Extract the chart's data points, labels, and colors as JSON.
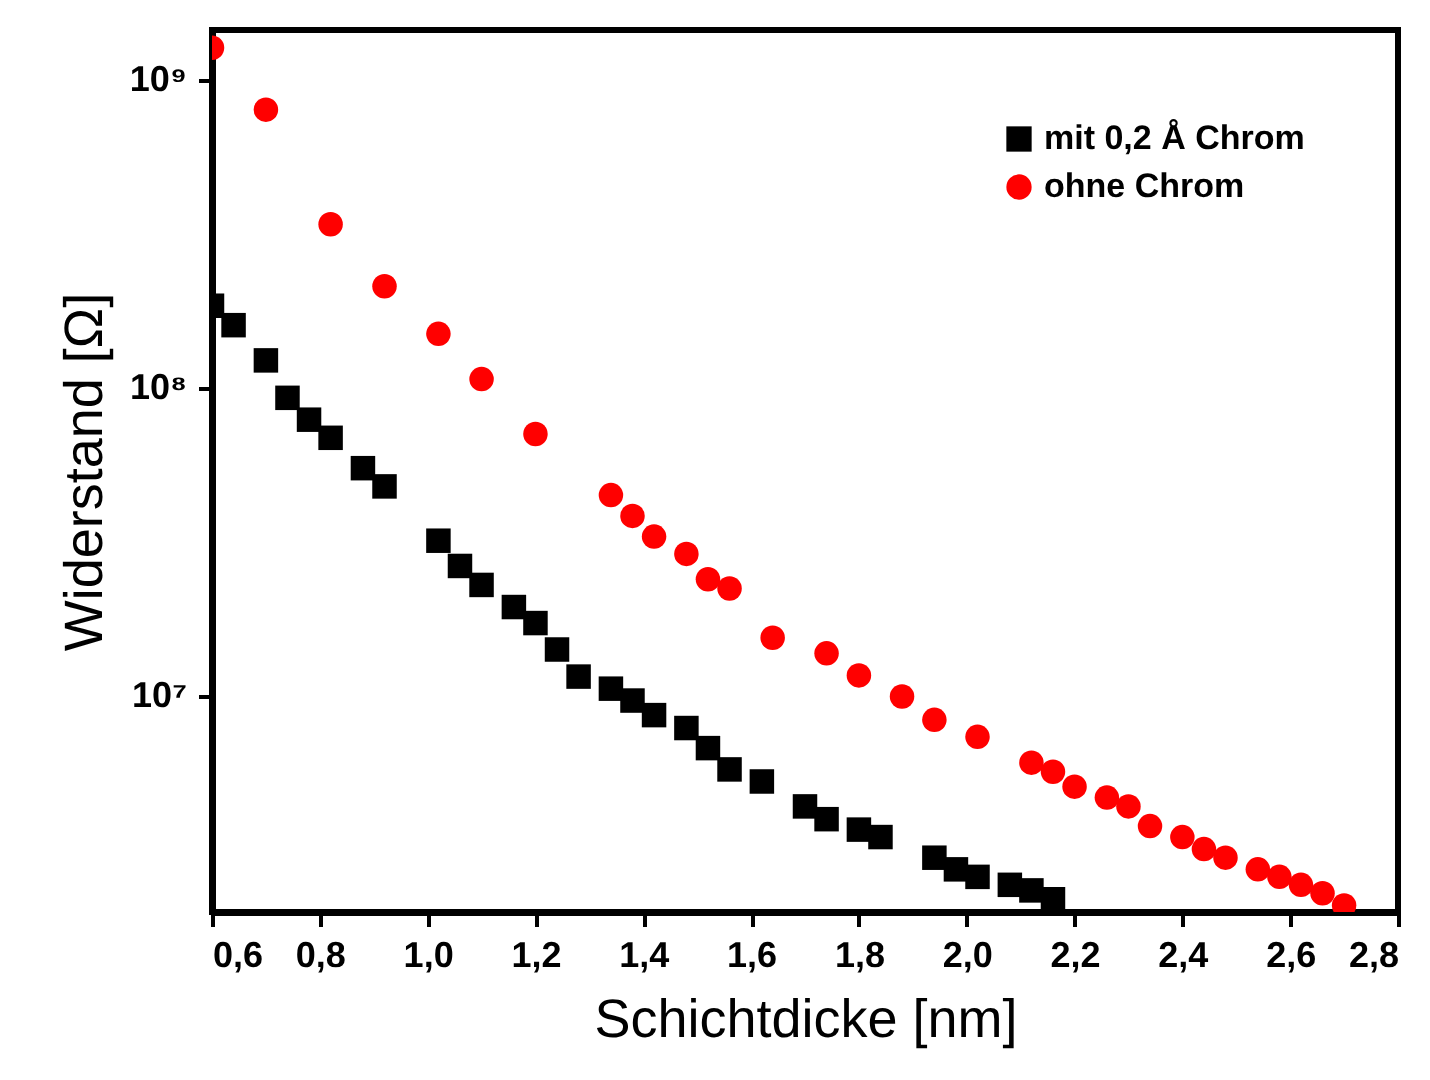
{
  "chart_data": {
    "type": "scatter",
    "xlabel": "Schichtdicke [nm]",
    "ylabel": "Widerstand [Ω]",
    "log": "y",
    "grid": false,
    "legend": "top right",
    "xlim": [
      0.6,
      2.8
    ],
    "xticks": [
      {
        "value": 0.6,
        "label": "0,6"
      },
      {
        "value": 0.8,
        "label": "0,8"
      },
      {
        "value": 1.0,
        "label": "1,0"
      },
      {
        "value": 1.2,
        "label": "1,2"
      },
      {
        "value": 1.4,
        "label": "1,4"
      },
      {
        "value": 1.6,
        "label": "1,6"
      },
      {
        "value": 1.8,
        "label": "1,8"
      },
      {
        "value": 2.0,
        "label": "2,0"
      },
      {
        "value": 2.2,
        "label": "2,2"
      },
      {
        "value": 2.4,
        "label": "2,4"
      },
      {
        "value": 2.6,
        "label": "2,6"
      },
      {
        "value": 2.8,
        "label": "2,8"
      }
    ],
    "ylim": [
      2000000,
      1450000000
    ],
    "yticks": [
      {
        "value": 10000000,
        "label": "10⁷"
      },
      {
        "value": 100000000,
        "label": "10⁸"
      },
      {
        "value": 1000000000,
        "label": "10⁹"
      }
    ],
    "series": [
      {
        "name": "mit 0,2 Å Chrom",
        "color": "#000000",
        "marker": "square",
        "x": [
          0.6,
          0.64,
          0.7,
          0.74,
          0.78,
          0.82,
          0.88,
          0.92,
          1.02,
          1.06,
          1.1,
          1.16,
          1.2,
          1.24,
          1.28,
          1.34,
          1.38,
          1.42,
          1.48,
          1.52,
          1.56,
          1.62,
          1.7,
          1.74,
          1.8,
          1.84,
          1.94,
          1.98,
          2.02,
          2.08,
          2.12,
          2.16
        ],
        "values": [
          185000000,
          160000000,
          123000000,
          93000000,
          79000000,
          69000000,
          55000000,
          48000000,
          32000000,
          26500000,
          23000000,
          19500000,
          17300000,
          14200000,
          11600000,
          10600000,
          9700000,
          8700000,
          7900000,
          6800000,
          5800000,
          5300000,
          4400000,
          4000000,
          3700000,
          3500000,
          3000000,
          2750000,
          2600000,
          2450000,
          2350000,
          2200000
        ]
      },
      {
        "name": "ohne Chrom",
        "color": "#ff0000",
        "marker": "circle",
        "x": [
          0.6,
          0.7,
          0.82,
          0.92,
          1.02,
          1.1,
          1.2,
          1.34,
          1.38,
          1.42,
          1.48,
          1.52,
          1.56,
          1.64,
          1.74,
          1.8,
          1.88,
          1.94,
          2.02,
          2.12,
          2.16,
          2.2,
          2.26,
          2.3,
          2.34,
          2.4,
          2.44,
          2.48,
          2.54,
          2.58,
          2.62,
          2.66,
          2.7
        ],
        "values": [
          1270000000,
          800000000,
          340000000,
          214000000,
          150000000,
          107000000,
          71000000,
          45000000,
          38500000,
          33000000,
          29000000,
          24000000,
          22400000,
          15500000,
          13800000,
          11700000,
          10000000,
          8400000,
          7400000,
          6100000,
          5700000,
          5100000,
          4700000,
          4400000,
          3800000,
          3500000,
          3200000,
          3000000,
          2750000,
          2600000,
          2450000,
          2300000,
          2100000
        ]
      }
    ]
  }
}
